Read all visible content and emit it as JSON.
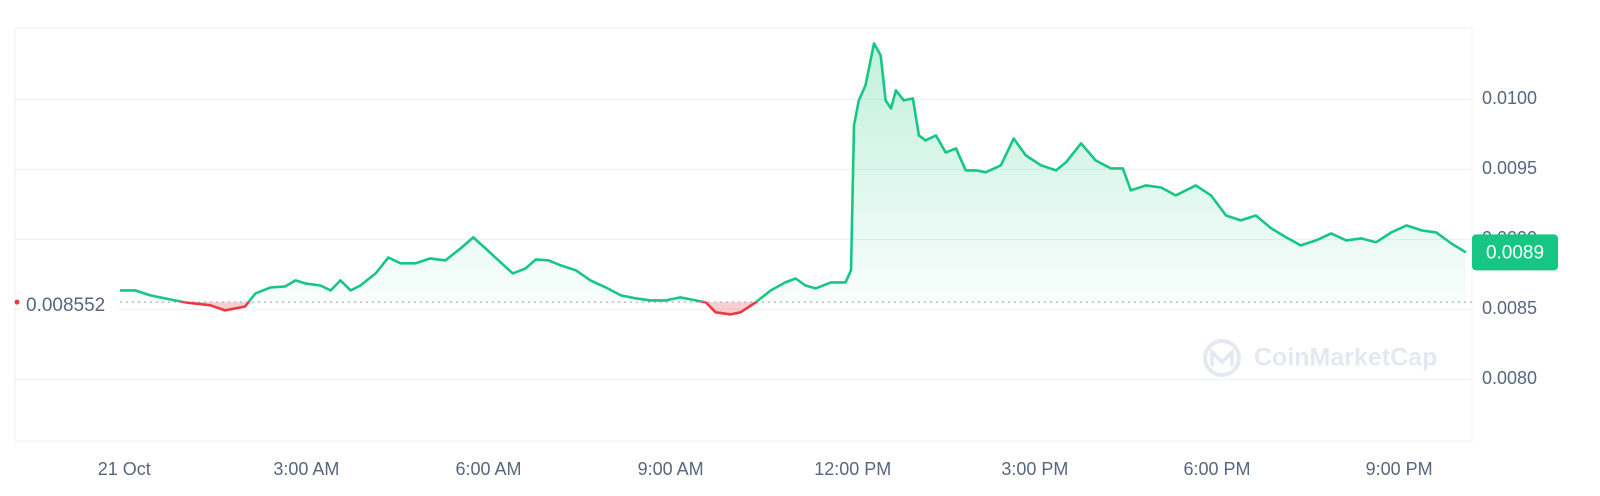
{
  "chart_data": {
    "type": "line",
    "x": [
      -0.07,
      0.18,
      0.43,
      0.76,
      1.01,
      1.42,
      1.66,
      1.83,
      1.99,
      2.16,
      2.41,
      2.65,
      2.82,
      2.98,
      3.23,
      3.4,
      3.56,
      3.73,
      3.89,
      4.14,
      4.35,
      4.55,
      4.8,
      5.04,
      5.29,
      5.54,
      5.75,
      5.95,
      6.2,
      6.4,
      6.61,
      6.78,
      6.99,
      7.19,
      7.44,
      7.68,
      7.93,
      8.18,
      8.42,
      8.67,
      8.92,
      9.16,
      9.41,
      9.58,
      9.74,
      9.99,
      10.15,
      10.4,
      10.65,
      10.89,
      11.06,
      11.22,
      11.39,
      11.64,
      11.88,
      11.97,
      12.02,
      12.1,
      12.21,
      12.35,
      12.46,
      12.54,
      12.63,
      12.71,
      12.84,
      12.99,
      13.09,
      13.2,
      13.37,
      13.53,
      13.7,
      13.86,
      14.03,
      14.19,
      14.44,
      14.65,
      14.85,
      15.1,
      15.35,
      15.51,
      15.76,
      16.0,
      16.25,
      16.45,
      16.58,
      16.83,
      17.08,
      17.32,
      17.65,
      17.9,
      18.15,
      18.39,
      18.64,
      18.89,
      19.14,
      19.38,
      19.63,
      19.88,
      20.13,
      20.37,
      20.62,
      20.87,
      21.12,
      21.37,
      21.61,
      21.86,
      22.1
    ],
    "values": [
      0.008636,
      0.008636,
      0.0086,
      0.008571,
      0.00855,
      0.008529,
      0.008493,
      0.008507,
      0.008521,
      0.008614,
      0.008657,
      0.008664,
      0.008707,
      0.008686,
      0.008671,
      0.008636,
      0.008707,
      0.008636,
      0.008671,
      0.008757,
      0.008871,
      0.008829,
      0.008829,
      0.008864,
      0.00885,
      0.008936,
      0.009014,
      0.008936,
      0.008836,
      0.008757,
      0.008793,
      0.008857,
      0.00885,
      0.008814,
      0.008779,
      0.008707,
      0.008657,
      0.0086,
      0.008579,
      0.008564,
      0.008564,
      0.008586,
      0.008564,
      0.00855,
      0.008479,
      0.008464,
      0.008479,
      0.00855,
      0.008636,
      0.008693,
      0.008721,
      0.008671,
      0.00865,
      0.008693,
      0.008693,
      0.008779,
      0.009814,
      0.009993,
      0.0101,
      0.0104,
      0.010314,
      0.009993,
      0.009936,
      0.010064,
      0.009993,
      0.010007,
      0.009743,
      0.009707,
      0.009743,
      0.009621,
      0.00965,
      0.009493,
      0.009493,
      0.009479,
      0.009529,
      0.009721,
      0.0096,
      0.009529,
      0.009493,
      0.00955,
      0.009686,
      0.009564,
      0.009507,
      0.009507,
      0.00935,
      0.009386,
      0.009371,
      0.009314,
      0.009386,
      0.009314,
      0.009171,
      0.009136,
      0.009171,
      0.009079,
      0.009014,
      0.008957,
      0.008993,
      0.009043,
      0.008993,
      0.009007,
      0.008979,
      0.00905,
      0.0091,
      0.009064,
      0.00905,
      0.008971,
      0.008907
    ],
    "color": "#16c784",
    "down_color": "#ea3943",
    "baseline": 0.008552,
    "last_value_label": "0.0089",
    "watermark": "CoinMarketCap",
    "xlim": [
      -1.8,
      22.2
    ],
    "xticks": [
      {
        "value": 0,
        "label": "21 Oct"
      },
      {
        "value": 3,
        "label": "3:00 AM"
      },
      {
        "value": 6,
        "label": "6:00 AM"
      },
      {
        "value": 9,
        "label": "9:00 AM"
      },
      {
        "value": 12,
        "label": "12:00 PM"
      },
      {
        "value": 15,
        "label": "3:00 PM"
      },
      {
        "value": 18,
        "label": "6:00 PM"
      },
      {
        "value": 21,
        "label": "9:00 PM"
      }
    ],
    "ylim": [
      0.00756,
      0.01051
    ],
    "yticks": [
      {
        "value": 0.008,
        "label": "0.0080"
      },
      0.0085,
      {
        "value": 0.009,
        "label": "0.0090"
      },
      0.0095,
      {
        "value": 0.01,
        "label": "0.0100"
      }
    ],
    "grid": true
  }
}
